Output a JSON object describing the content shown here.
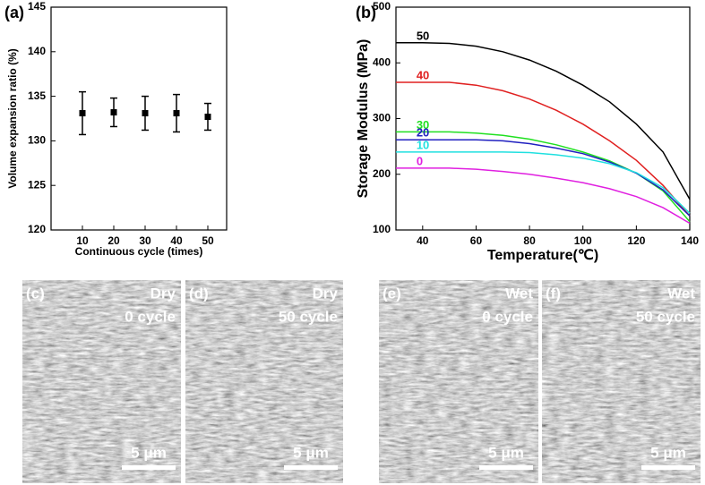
{
  "chart_data": [
    {
      "type": "errorbar",
      "panel_label": "(a)",
      "x_label": "Continuous cycle (times)",
      "y_label": "Volume expansion ratio (%)",
      "x": [
        10,
        20,
        30,
        40,
        50
      ],
      "values": [
        133.1,
        133.2,
        133.1,
        133.1,
        132.7
      ],
      "errors": [
        2.4,
        1.6,
        1.9,
        2.1,
        1.5
      ],
      "color": "#000000",
      "xlim": [
        0,
        56
      ],
      "xticks": [
        10,
        20,
        30,
        40,
        50
      ],
      "ylim": [
        120,
        145
      ],
      "yticks": [
        120,
        125,
        130,
        135,
        140,
        145
      ]
    },
    {
      "type": "line",
      "panel_label": "(b)",
      "x_label": "Temperature(℃)",
      "y_label": "Storage Modulus (MPa)",
      "x": [
        30,
        40,
        50,
        60,
        70,
        80,
        90,
        100,
        110,
        120,
        130,
        140
      ],
      "series": [
        {
          "name": "50",
          "color": "#000000",
          "values": [
            436,
            436,
            435,
            430,
            420,
            405,
            385,
            360,
            330,
            290,
            240,
            155
          ]
        },
        {
          "name": "40",
          "color": "#e02020",
          "values": [
            365,
            365,
            365,
            360,
            350,
            335,
            315,
            290,
            260,
            225,
            180,
            125
          ]
        },
        {
          "name": "30",
          "color": "#20e020",
          "values": [
            276,
            276,
            276,
            274,
            270,
            263,
            253,
            240,
            224,
            202,
            170,
            115
          ]
        },
        {
          "name": "20",
          "color": "#2020c0",
          "values": [
            262,
            262,
            262,
            262,
            260,
            255,
            247,
            237,
            222,
            202,
            172,
            125
          ]
        },
        {
          "name": "10",
          "color": "#20e0e0",
          "values": [
            240,
            240,
            240,
            240,
            240,
            239,
            235,
            229,
            219,
            203,
            176,
            130
          ]
        },
        {
          "name": "0",
          "color": "#e020e0",
          "values": [
            211,
            211,
            211,
            209,
            205,
            200,
            193,
            185,
            174,
            160,
            140,
            112
          ]
        }
      ],
      "xlim": [
        30,
        140
      ],
      "xticks": [
        40,
        60,
        80,
        100,
        120,
        140
      ],
      "ylim": [
        100,
        500
      ],
      "yticks": [
        100,
        200,
        300,
        400,
        500
      ]
    }
  ],
  "panels": [
    {
      "label": "(c)",
      "condition": "Dry",
      "cycle": "0 cycle",
      "scale": "5 μm"
    },
    {
      "label": "(d)",
      "condition": "Dry",
      "cycle": "50 cycle",
      "scale": "5 μm"
    },
    {
      "label": "(e)",
      "condition": "Wet",
      "cycle": "0 cycle",
      "scale": "5 μm"
    },
    {
      "label": "(f)",
      "condition": "Wet",
      "cycle": "50 cycle",
      "scale": "5 μm"
    }
  ]
}
